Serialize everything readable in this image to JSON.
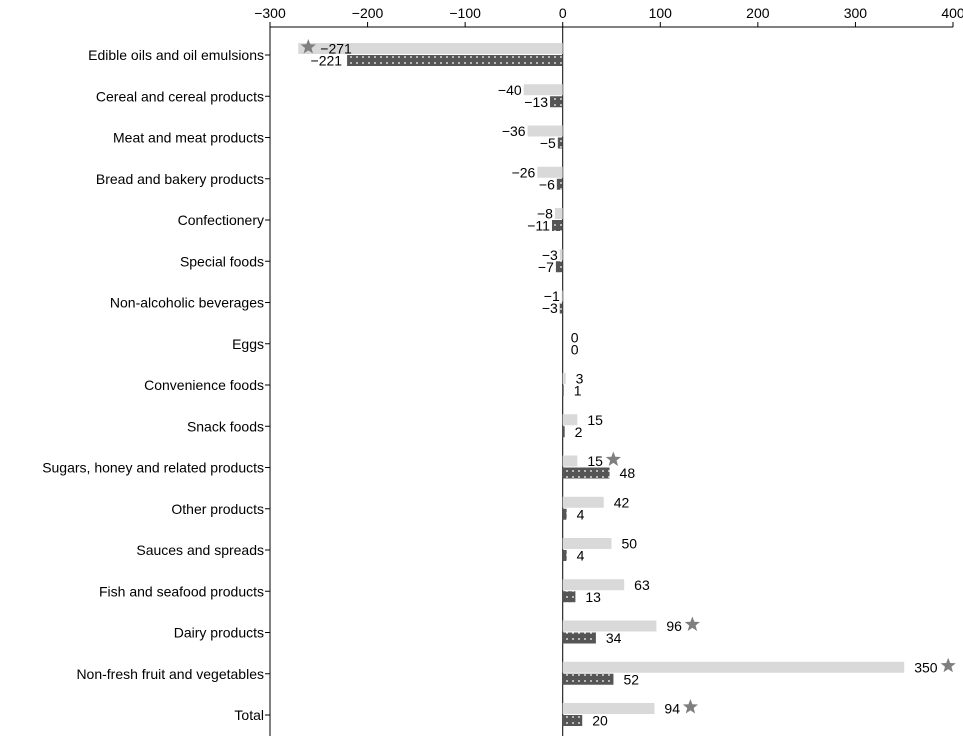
{
  "chart_data": {
    "type": "bar",
    "orientation": "horizontal",
    "title": "",
    "xlabel": "",
    "ylabel": "",
    "xlim": [
      -300,
      400
    ],
    "x_ticks": [
      -300,
      -200,
      -100,
      0,
      100,
      200,
      300,
      400
    ],
    "x_tick_labels": [
      "−300",
      "−200",
      "−100",
      "0",
      "100",
      "200",
      "300",
      "400"
    ],
    "grid": false,
    "legend": "none",
    "categories": [
      "Edible oils and oil emulsions",
      "Cereal and cereal products",
      "Meat and meat products",
      "Bread and bakery products",
      "Confectionery",
      "Special foods",
      "Non-alcoholic beverages",
      "Eggs",
      "Convenience foods",
      "Snack foods",
      "Sugars, honey and related products",
      "Other products",
      "Sauces and spreads",
      "Fish and seafood products",
      "Dairy products",
      "Non-fresh fruit and vegetables",
      "Total"
    ],
    "series": [
      {
        "style": "light-grey",
        "color": "#d9d9d9",
        "values": [
          -271,
          -40,
          -36,
          -26,
          -8,
          -3,
          -1,
          0,
          3,
          15,
          15,
          42,
          50,
          63,
          96,
          350,
          94
        ],
        "labels": [
          "−271",
          "−40",
          "−36",
          "−26",
          "−8",
          "−3",
          "−1",
          "0",
          "3",
          "15",
          "15",
          "42",
          "50",
          "63",
          "96",
          "350",
          "94"
        ],
        "significant": [
          true,
          false,
          false,
          false,
          false,
          false,
          false,
          false,
          false,
          false,
          true,
          false,
          false,
          false,
          true,
          true,
          true
        ]
      },
      {
        "style": "dark-dotted",
        "color": "#555555",
        "values": [
          -221,
          -13,
          -5,
          -6,
          -11,
          -7,
          -3,
          0,
          1,
          2,
          48,
          4,
          4,
          13,
          34,
          52,
          20
        ],
        "labels": [
          "−221",
          "−13",
          "−5",
          "−6",
          "−11",
          "−7",
          "−3",
          "0",
          "1",
          "2",
          "48",
          "4",
          "4",
          "13",
          "34",
          "52",
          "20"
        ],
        "significant": [
          false,
          false,
          false,
          false,
          false,
          false,
          false,
          false,
          false,
          false,
          false,
          false,
          false,
          false,
          false,
          false,
          false
        ]
      }
    ],
    "marker": {
      "name": "star-icon",
      "color": "#7f7f7f"
    }
  }
}
